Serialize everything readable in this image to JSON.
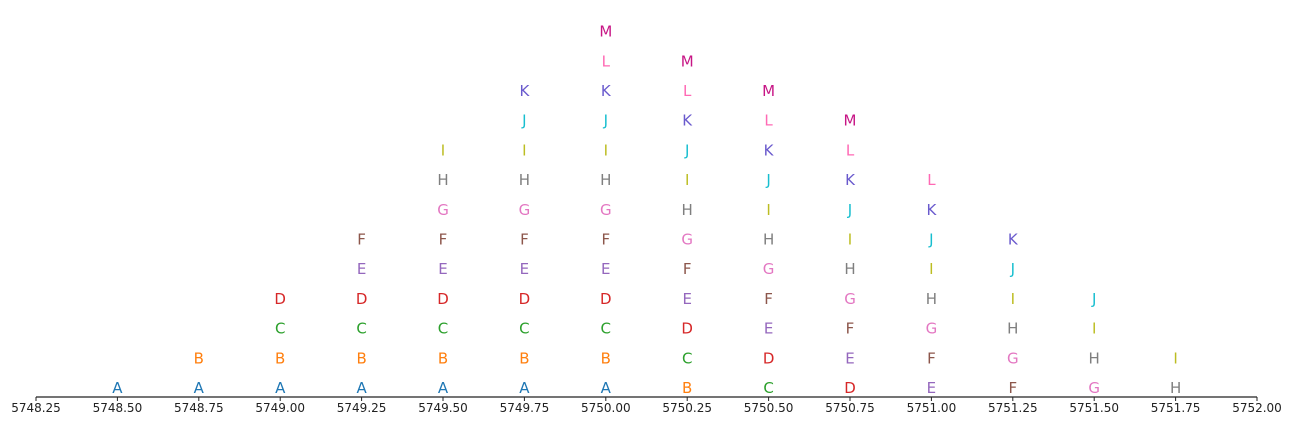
{
  "chart_data": {
    "type": "scatter",
    "title": "",
    "xlabel": "",
    "ylabel": "",
    "xlim": [
      5748.25,
      5752.0
    ],
    "x_ticks": [
      "5748.25",
      "5748.50",
      "5748.75",
      "5749.00",
      "5749.25",
      "5749.50",
      "5749.75",
      "5750.00",
      "5750.25",
      "5750.50",
      "5750.75",
      "5751.00",
      "5751.25",
      "5751.50",
      "5751.75",
      "5752.00"
    ],
    "grid": false,
    "legend": "none",
    "series_colors": {
      "A": "#1f77b4",
      "B": "#ff7f0e",
      "C": "#2ca02c",
      "D": "#d62728",
      "E": "#9467bd",
      "F": "#8c564b",
      "G": "#e377c2",
      "H": "#7f7f7f",
      "I": "#bcbd22",
      "J": "#17becf",
      "K": "#6a5acd",
      "L": "#ff69b4",
      "M": "#c71585"
    },
    "columns": [
      {
        "x": 5748.5,
        "letters": [
          "A"
        ]
      },
      {
        "x": 5748.75,
        "letters": [
          "A",
          "B"
        ]
      },
      {
        "x": 5749.0,
        "letters": [
          "A",
          "B",
          "C",
          "D"
        ]
      },
      {
        "x": 5749.25,
        "letters": [
          "A",
          "B",
          "C",
          "D",
          "E",
          "F"
        ]
      },
      {
        "x": 5749.5,
        "letters": [
          "A",
          "B",
          "C",
          "D",
          "E",
          "F",
          "G",
          "H",
          "I"
        ]
      },
      {
        "x": 5749.75,
        "letters": [
          "A",
          "B",
          "C",
          "D",
          "E",
          "F",
          "G",
          "H",
          "I",
          "J",
          "K"
        ]
      },
      {
        "x": 5750.0,
        "letters": [
          "A",
          "B",
          "C",
          "D",
          "E",
          "F",
          "G",
          "H",
          "I",
          "J",
          "K",
          "L",
          "M"
        ]
      },
      {
        "x": 5750.25,
        "letters": [
          "B",
          "C",
          "D",
          "E",
          "F",
          "G",
          "H",
          "I",
          "J",
          "K",
          "L",
          "M"
        ]
      },
      {
        "x": 5750.5,
        "letters": [
          "C",
          "D",
          "E",
          "F",
          "G",
          "H",
          "I",
          "J",
          "K",
          "L",
          "M"
        ]
      },
      {
        "x": 5750.75,
        "letters": [
          "D",
          "E",
          "F",
          "G",
          "H",
          "I",
          "J",
          "K",
          "L",
          "M"
        ]
      },
      {
        "x": 5751.0,
        "letters": [
          "E",
          "F",
          "G",
          "H",
          "I",
          "J",
          "K",
          "L"
        ]
      },
      {
        "x": 5751.25,
        "letters": [
          "F",
          "G",
          "H",
          "I",
          "J",
          "K"
        ]
      },
      {
        "x": 5751.5,
        "letters": [
          "G",
          "H",
          "I",
          "J"
        ]
      },
      {
        "x": 5751.75,
        "letters": [
          "H",
          "I"
        ]
      }
    ]
  }
}
